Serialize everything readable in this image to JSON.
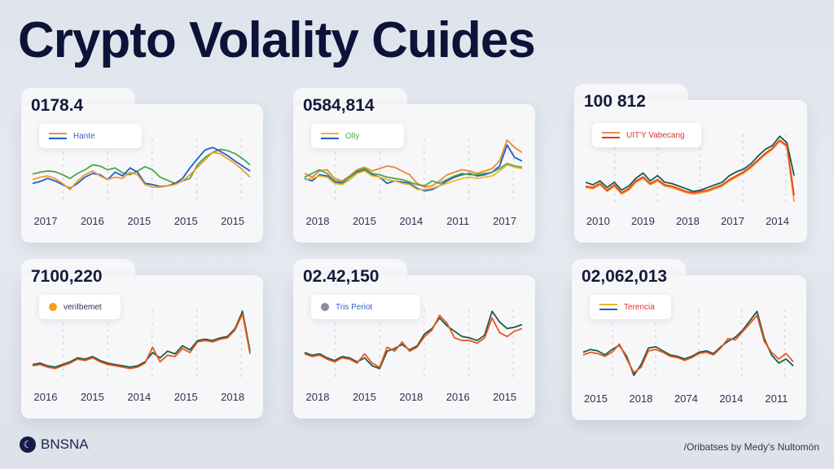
{
  "header": {
    "title": "Crypto Volality Cuides"
  },
  "footer": {
    "brand": "BNSNA",
    "credit": "/Oribatses by Medy's Nultomön"
  },
  "colors": {
    "blue": "#1f5fc9",
    "orange": "#f39a2b",
    "green": "#4aa64a",
    "red": "#e0352a",
    "darkgreen": "#1d5a45",
    "redorange": "#e8571f",
    "background": "#e2e6ed"
  },
  "chart_data": [
    {
      "type": "line",
      "title": "0178.4",
      "legend": {
        "label": "Hante",
        "color": "#3a62c9",
        "swatch": [
          "#f08a4b",
          "#1f5fc9"
        ]
      },
      "xticks": [
        "2017",
        "2016",
        "2015",
        "2015",
        "2015"
      ],
      "ylim": [
        0,
        100
      ],
      "grid": "vertical-dashed",
      "series": [
        {
          "name": "green",
          "color": "#4aa64a",
          "values": [
            45,
            48,
            50,
            49,
            44,
            38,
            46,
            52,
            60,
            58,
            52,
            55,
            47,
            44,
            50,
            57,
            52,
            40,
            35,
            30,
            34,
            38,
            60,
            72,
            80,
            85,
            83,
            78,
            70,
            60
          ]
        },
        {
          "name": "blue",
          "color": "#1f5fc9",
          "values": [
            30,
            33,
            38,
            34,
            28,
            22,
            30,
            40,
            46,
            44,
            36,
            48,
            42,
            55,
            48,
            30,
            28,
            25,
            26,
            30,
            38,
            55,
            70,
            84,
            88,
            82,
            75,
            66,
            58,
            50
          ]
        },
        {
          "name": "orange",
          "color": "#f39a2b",
          "values": [
            36,
            40,
            42,
            38,
            30,
            20,
            34,
            44,
            50,
            42,
            36,
            40,
            38,
            48,
            44,
            28,
            24,
            24,
            26,
            28,
            34,
            44,
            56,
            68,
            80,
            78,
            70,
            62,
            52,
            40
          ]
        }
      ]
    },
    {
      "type": "line",
      "title": "0584,814",
      "legend": {
        "label": "Olly",
        "color": "#4aa64a",
        "swatch": [
          "#f3b52b",
          "#1f5fc9"
        ]
      },
      "xticks": [
        "2018",
        "2015",
        "2014",
        "2011",
        "2017"
      ],
      "ylim": [
        0,
        100
      ],
      "grid": "vertical-dashed",
      "series": [
        {
          "name": "orange",
          "color": "#f0862b",
          "values": [
            46,
            40,
            50,
            52,
            38,
            34,
            42,
            52,
            56,
            50,
            54,
            58,
            56,
            50,
            44,
            30,
            24,
            26,
            34,
            44,
            48,
            52,
            50,
            46,
            50,
            54,
            66,
            100,
            88,
            80
          ]
        },
        {
          "name": "blue",
          "color": "#1f5fc9",
          "values": [
            38,
            34,
            44,
            42,
            32,
            30,
            36,
            48,
            52,
            44,
            40,
            30,
            34,
            32,
            30,
            22,
            18,
            20,
            26,
            34,
            40,
            44,
            46,
            42,
            44,
            48,
            58,
            92,
            72,
            66
          ]
        },
        {
          "name": "green",
          "color": "#4aa64a",
          "values": [
            40,
            46,
            52,
            46,
            34,
            32,
            40,
            50,
            54,
            46,
            44,
            40,
            38,
            36,
            32,
            28,
            26,
            34,
            30,
            36,
            42,
            46,
            44,
            44,
            46,
            48,
            54,
            62,
            58,
            56
          ]
        },
        {
          "name": "yellow",
          "color": "#f3b52b",
          "values": [
            36,
            38,
            42,
            40,
            30,
            28,
            36,
            46,
            50,
            42,
            40,
            36,
            34,
            30,
            28,
            20,
            20,
            22,
            26,
            30,
            34,
            38,
            40,
            38,
            40,
            42,
            50,
            60,
            56,
            54
          ]
        }
      ]
    },
    {
      "type": "line",
      "title": "100 812",
      "legend": {
        "label": "UIT'Y Vabecang",
        "color": "#d9342a",
        "swatch": [
          "#f08a4b",
          "#e0352a"
        ]
      },
      "xticks": [
        "2010",
        "2019",
        "2018",
        "2017",
        "2014"
      ],
      "ylim": [
        0,
        100
      ],
      "grid": "vertical-dashed",
      "series": [
        {
          "name": "darkgreen",
          "color": "#1d5a45",
          "values": [
            30,
            26,
            32,
            22,
            30,
            18,
            24,
            36,
            44,
            32,
            40,
            30,
            28,
            24,
            20,
            16,
            18,
            22,
            26,
            30,
            40,
            46,
            50,
            58,
            70,
            80,
            86,
            100,
            90,
            40
          ]
        },
        {
          "name": "orange",
          "color": "#f39a2b",
          "values": [
            22,
            20,
            26,
            16,
            24,
            12,
            18,
            30,
            36,
            26,
            32,
            24,
            22,
            18,
            14,
            12,
            14,
            16,
            20,
            24,
            32,
            38,
            44,
            52,
            62,
            72,
            80,
            92,
            84,
            0
          ]
        },
        {
          "name": "red",
          "color": "#e8451f",
          "values": [
            24,
            22,
            28,
            18,
            26,
            14,
            20,
            32,
            38,
            28,
            34,
            26,
            24,
            20,
            16,
            14,
            16,
            18,
            22,
            26,
            34,
            40,
            46,
            54,
            64,
            74,
            82,
            94,
            86,
            10
          ]
        }
      ]
    },
    {
      "type": "line",
      "title": "7100,220",
      "legend": {
        "label": "veriIbemet",
        "color": "#2a3050",
        "icon": "#f3a01b"
      },
      "xticks": [
        "2016",
        "2015",
        "2014",
        "2015",
        "2018"
      ],
      "ylim": [
        0,
        100
      ],
      "grid": "vertical-dashed",
      "series": [
        {
          "name": "darkgreen",
          "color": "#1d5a45",
          "values": [
            20,
            22,
            18,
            16,
            20,
            24,
            30,
            28,
            32,
            26,
            22,
            20,
            18,
            16,
            18,
            24,
            38,
            30,
            40,
            36,
            48,
            42,
            56,
            58,
            56,
            60,
            62,
            74,
            100,
            40
          ]
        },
        {
          "name": "orange",
          "color": "#e8571f",
          "values": [
            18,
            20,
            16,
            14,
            18,
            22,
            28,
            26,
            30,
            24,
            20,
            18,
            16,
            14,
            16,
            22,
            46,
            24,
            34,
            32,
            44,
            38,
            54,
            56,
            54,
            58,
            60,
            72,
            96,
            36
          ]
        }
      ]
    },
    {
      "type": "line",
      "title": "02.42,150",
      "legend": {
        "label": "Tris Periot",
        "color": "#2f62c9",
        "icon": "#8a8f9e"
      },
      "xticks": [
        "2018",
        "2015",
        "2018",
        "2016",
        "2015"
      ],
      "ylim": [
        0,
        100
      ],
      "grid": "vertical-dashed",
      "series": [
        {
          "name": "darkgreen",
          "color": "#1d5a45",
          "values": [
            38,
            34,
            36,
            30,
            26,
            32,
            30,
            24,
            30,
            18,
            14,
            40,
            44,
            50,
            42,
            48,
            66,
            74,
            90,
            78,
            70,
            62,
            60,
            56,
            64,
            100,
            84,
            74,
            76,
            80
          ]
        },
        {
          "name": "orange",
          "color": "#e8571f",
          "values": [
            36,
            32,
            34,
            28,
            24,
            30,
            28,
            22,
            36,
            22,
            16,
            46,
            40,
            54,
            40,
            46,
            62,
            72,
            94,
            82,
            60,
            56,
            56,
            52,
            60,
            90,
            68,
            62,
            70,
            74
          ]
        }
      ]
    },
    {
      "type": "line",
      "title": "02,062,013",
      "legend": {
        "label": "Terencia",
        "color": "#d9342a",
        "swatch": [
          "#f3b52b",
          "#1f5fc9"
        ]
      },
      "xticks": [
        "2015",
        "2018",
        "2074",
        "2014",
        "2011"
      ],
      "ylim": [
        0,
        100
      ],
      "grid": "vertical-dashed",
      "series": [
        {
          "name": "darkgreen",
          "color": "#1d5a45",
          "values": [
            40,
            44,
            42,
            36,
            44,
            50,
            34,
            6,
            22,
            46,
            48,
            42,
            36,
            34,
            30,
            34,
            40,
            42,
            38,
            48,
            56,
            62,
            72,
            86,
            100,
            60,
            36,
            24,
            30,
            20
          ]
        },
        {
          "name": "orange",
          "color": "#e8571f",
          "values": [
            36,
            40,
            38,
            34,
            40,
            52,
            30,
            10,
            18,
            42,
            44,
            40,
            34,
            32,
            28,
            32,
            38,
            40,
            36,
            46,
            60,
            58,
            70,
            82,
            94,
            56,
            40,
            30,
            38,
            26
          ]
        }
      ]
    }
  ]
}
